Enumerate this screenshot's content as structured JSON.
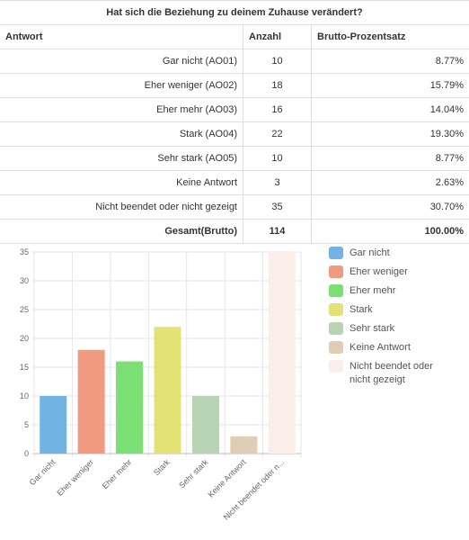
{
  "table": {
    "title": "Hat sich die Beziehung zu deinem Zuhause verändert?",
    "headers": [
      "Antwort",
      "Anzahl",
      "Brutto-Prozentsatz"
    ],
    "rows": [
      [
        "Gar nicht (AO01)",
        "10",
        "8.77%"
      ],
      [
        "Eher weniger (AO02)",
        "18",
        "15.79%"
      ],
      [
        "Eher mehr (AO03)",
        "16",
        "14.04%"
      ],
      [
        "Stark (AO04)",
        "22",
        "19.30%"
      ],
      [
        "Sehr stark (AO05)",
        "10",
        "8.77%"
      ],
      [
        "Keine Antwort",
        "3",
        "2.63%"
      ],
      [
        "Nicht beendet oder nicht gezeigt",
        "35",
        "30.70%"
      ]
    ],
    "total": [
      "Gesamt(Brutto)",
      "114",
      "100.00%"
    ]
  },
  "chart_data": {
    "type": "bar",
    "categories": [
      "Gar nicht",
      "Eher weniger",
      "Eher mehr",
      "Stark",
      "Sehr stark",
      "Keine Antwort",
      "Nicht beendet oder n..."
    ],
    "values": [
      10,
      18,
      16,
      22,
      10,
      3,
      35
    ],
    "colors": [
      "#71b3e3",
      "#f09a80",
      "#7ae074",
      "#e3e274",
      "#b6d4b4",
      "#e1cdb3",
      "#fbeee8"
    ],
    "legend": [
      "Gar nicht",
      "Eher weniger",
      "Eher mehr",
      "Stark",
      "Sehr stark",
      "Keine Antwort",
      "Nicht beendet oder nicht gezeigt"
    ],
    "ylim": [
      0,
      35
    ],
    "yticks": [
      0,
      5,
      10,
      15,
      20,
      25,
      30,
      35
    ],
    "grid": true
  }
}
